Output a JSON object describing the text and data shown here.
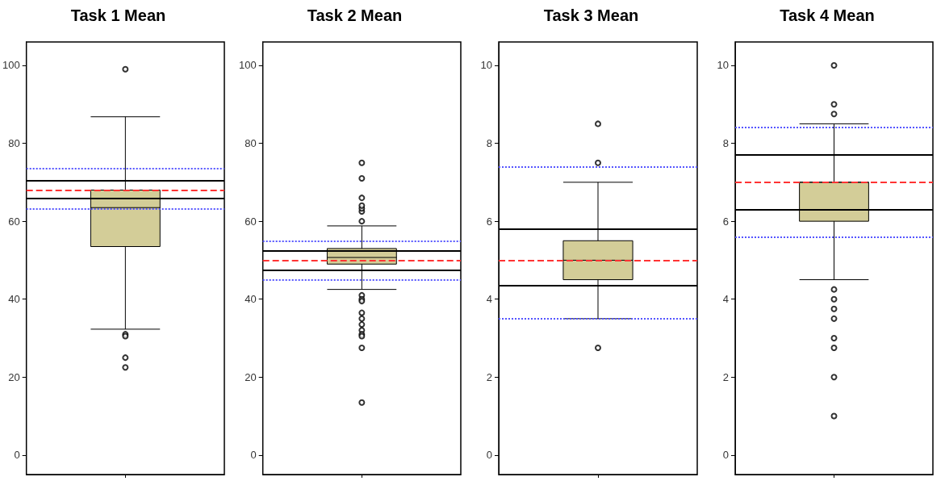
{
  "chart_data": [
    {
      "type": "box",
      "title": "Task 1 Mean",
      "categories": [
        null
      ],
      "color": "#d3cd98",
      "ylim": [
        -5,
        106
      ],
      "yticks": [
        0,
        20,
        40,
        60,
        80,
        100
      ],
      "grid": false,
      "boxes": [
        {
          "low": 32.3,
          "q1": 53.5,
          "median": 63.5,
          "q3": 68,
          "high": 86.8,
          "outliers": [
            99,
            31,
            30.5,
            25,
            22.5
          ]
        }
      ],
      "ref_lines": [
        {
          "axis": "y",
          "value": 73.5,
          "color": "#5555ff",
          "line_style": "dotted"
        },
        {
          "axis": "y",
          "value": 63.2,
          "color": "#5555ff",
          "line_style": "dotted"
        },
        {
          "axis": "y",
          "value": 70.5,
          "color": "#000000",
          "line_style": "solid"
        },
        {
          "axis": "y",
          "value": 65.8,
          "color": "#000000",
          "line_style": "solid"
        },
        {
          "axis": "y",
          "value": 68,
          "color": "#ff3333",
          "line_style": "dashed"
        }
      ]
    },
    {
      "type": "box",
      "title": "Task 2 Mean",
      "categories": [
        null
      ],
      "color": "#d3cd98",
      "ylim": [
        -5,
        106
      ],
      "yticks": [
        0,
        20,
        40,
        60,
        80,
        100
      ],
      "grid": false,
      "boxes": [
        {
          "low": 42.5,
          "q1": 49,
          "median": 50.7,
          "q3": 53,
          "high": 58.8,
          "outliers": [
            60,
            62.5,
            63.3,
            64,
            66,
            71,
            75,
            41,
            40,
            39.5,
            36.5,
            35,
            33.5,
            32,
            31,
            30.5,
            27.5,
            13.5
          ]
        }
      ],
      "ref_lines": [
        {
          "axis": "y",
          "value": 55,
          "color": "#5555ff",
          "line_style": "dotted"
        },
        {
          "axis": "y",
          "value": 45,
          "color": "#5555ff",
          "line_style": "dotted"
        },
        {
          "axis": "y",
          "value": 52.5,
          "color": "#000000",
          "line_style": "solid"
        },
        {
          "axis": "y",
          "value": 47.5,
          "color": "#000000",
          "line_style": "solid"
        },
        {
          "axis": "y",
          "value": 50,
          "color": "#ff3333",
          "line_style": "dashed"
        }
      ]
    },
    {
      "type": "box",
      "title": "Task 3 Mean",
      "categories": [
        null
      ],
      "color": "#d3cd98",
      "ylim": [
        -0.5,
        10.6
      ],
      "yticks": [
        0,
        2,
        4,
        6,
        8,
        10
      ],
      "grid": false,
      "boxes": [
        {
          "low": 3.5,
          "q1": 4.5,
          "median": 5.0,
          "q3": 5.5,
          "high": 7.0,
          "outliers": [
            8.5,
            7.5,
            2.75
          ]
        }
      ],
      "ref_lines": [
        {
          "axis": "y",
          "value": 7.4,
          "color": "#5555ff",
          "line_style": "dotted"
        },
        {
          "axis": "y",
          "value": 3.5,
          "color": "#5555ff",
          "line_style": "dotted"
        },
        {
          "axis": "y",
          "value": 5.8,
          "color": "#000000",
          "line_style": "solid"
        },
        {
          "axis": "y",
          "value": 4.35,
          "color": "#000000",
          "line_style": "solid"
        },
        {
          "axis": "y",
          "value": 5.0,
          "color": "#ff3333",
          "line_style": "dashed"
        }
      ]
    },
    {
      "type": "box",
      "title": "Task 4 Mean",
      "categories": [
        null
      ],
      "color": "#d3cd98",
      "ylim": [
        -0.5,
        10.6
      ],
      "yticks": [
        0,
        2,
        4,
        6,
        8,
        10
      ],
      "grid": false,
      "boxes": [
        {
          "low": 4.5,
          "q1": 6.0,
          "median": 7.0,
          "q3": 7.0,
          "high": 8.5,
          "outliers": [
            10,
            9,
            8.75,
            4.25,
            4.0,
            3.75,
            3.5,
            3.0,
            2.75,
            2,
            1
          ]
        }
      ],
      "ref_lines": [
        {
          "axis": "y",
          "value": 8.4,
          "color": "#5555ff",
          "line_style": "dotted"
        },
        {
          "axis": "y",
          "value": 5.6,
          "color": "#5555ff",
          "line_style": "dotted"
        },
        {
          "axis": "y",
          "value": 7.7,
          "color": "#000000",
          "line_style": "solid"
        },
        {
          "axis": "y",
          "value": 6.3,
          "color": "#000000",
          "line_style": "solid"
        },
        {
          "axis": "y",
          "value": 7.0,
          "color": "#ff3333",
          "line_style": "dashed"
        }
      ]
    }
  ]
}
